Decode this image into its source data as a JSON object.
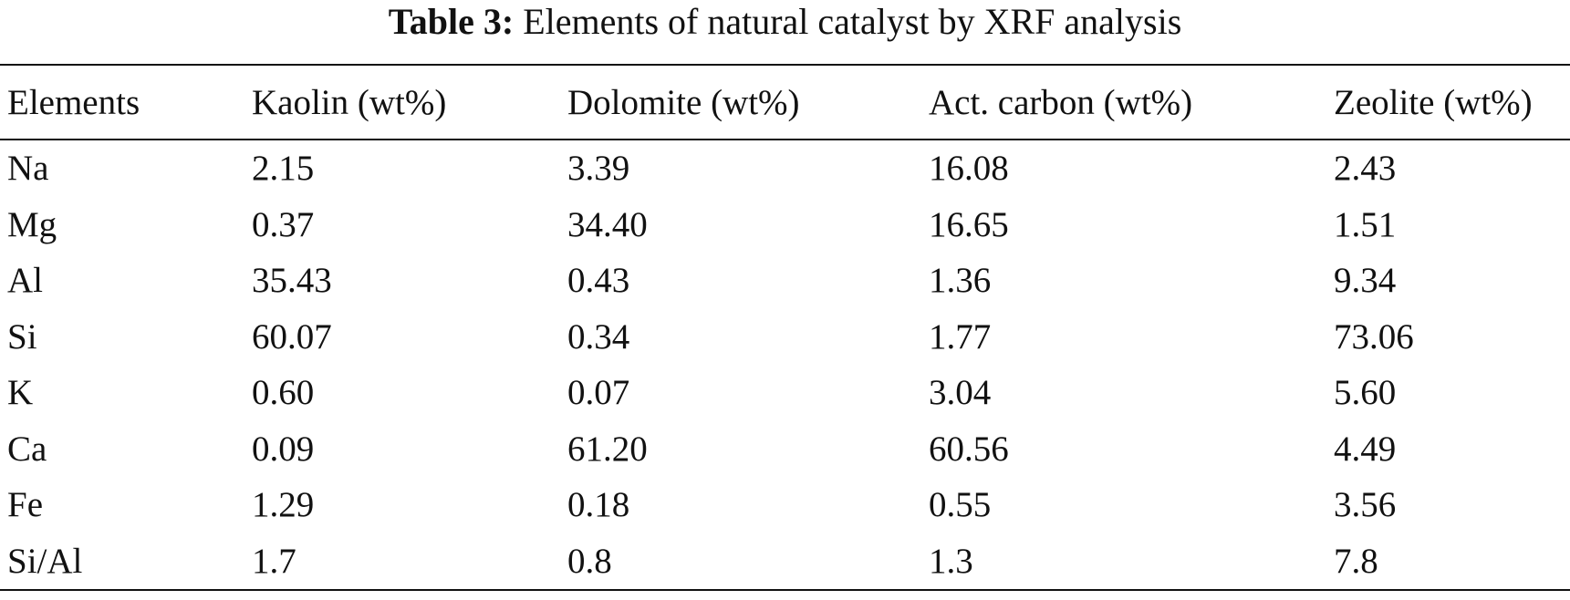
{
  "caption": {
    "label": "Table 3:",
    "text": "Elements of natural catalyst by XRF analysis"
  },
  "table": {
    "headers": [
      "Elements",
      "Kaolin (wt%)",
      "Dolomite (wt%)",
      "Act. carbon (wt%)",
      "Zeolite (wt%)"
    ],
    "rows": [
      [
        "Na",
        "2.15",
        "3.39",
        "16.08",
        "2.43"
      ],
      [
        "Mg",
        "0.37",
        "34.40",
        "16.65",
        "1.51"
      ],
      [
        "Al",
        "35.43",
        "0.43",
        "1.36",
        "9.34"
      ],
      [
        "Si",
        "60.07",
        "0.34",
        "1.77",
        "73.06"
      ],
      [
        "K",
        "0.60",
        "0.07",
        "3.04",
        "5.60"
      ],
      [
        "Ca",
        "0.09",
        "61.20",
        "60.56",
        "4.49"
      ],
      [
        "Fe",
        "1.29",
        "0.18",
        "0.55",
        "3.56"
      ],
      [
        "Si/Al",
        "1.7",
        "0.8",
        "1.3",
        "7.8"
      ]
    ]
  }
}
